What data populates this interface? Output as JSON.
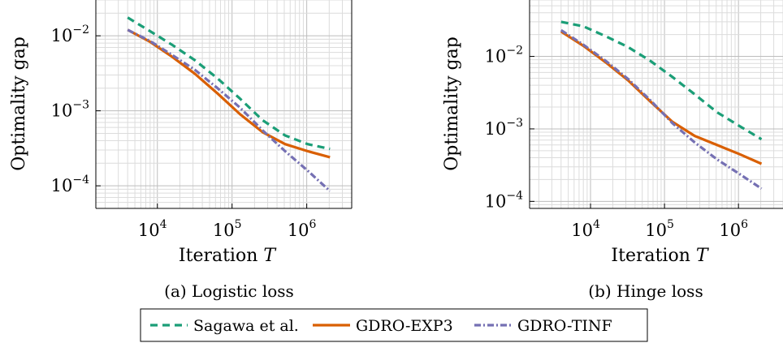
{
  "chart_data": [
    {
      "type": "line",
      "caption": "(a) Logistic loss",
      "xlabel": "Iteration",
      "xlabel_var": "T",
      "ylabel": "Optimality gap",
      "xscale": "log",
      "yscale": "log",
      "xlim": [
        1500,
        4000000
      ],
      "ylim": [
        5e-05,
        0.03
      ],
      "xticks": [
        10000,
        100000,
        1000000
      ],
      "xtick_labels": [
        {
          "base": "10",
          "exp": "4"
        },
        {
          "base": "10",
          "exp": "5"
        },
        {
          "base": "10",
          "exp": "6"
        }
      ],
      "yticks": [
        0.0001,
        0.001,
        0.01
      ],
      "ytick_labels": [
        {
          "base": "10",
          "exp": "−4"
        },
        {
          "base": "10",
          "exp": "−3"
        },
        {
          "base": "10",
          "exp": "−2"
        }
      ],
      "grid": true,
      "x": [
        4000,
        8000,
        16000,
        32000,
        64000,
        128000,
        256000,
        512000,
        1024000,
        2048000
      ],
      "series": [
        {
          "name": "Sagawa et al.",
          "values": [
            0.0175,
            0.0115,
            0.0075,
            0.0047,
            0.0027,
            0.00145,
            0.00075,
            0.00047,
            0.00036,
            0.00031
          ]
        },
        {
          "name": "GDRO-EXP3",
          "values": [
            0.012,
            0.0083,
            0.0052,
            0.0031,
            0.0017,
            0.0009,
            0.00052,
            0.00036,
            0.00029,
            0.00024
          ]
        },
        {
          "name": "GDRO-TINF",
          "values": [
            0.012,
            0.0085,
            0.0055,
            0.0035,
            0.002,
            0.0011,
            0.00055,
            0.00029,
            0.00016,
            8.5e-05
          ]
        }
      ]
    },
    {
      "type": "line",
      "caption": "(b) Hinge loss",
      "xlabel": "Iteration",
      "xlabel_var": "T",
      "ylabel": "Optimality gap",
      "xscale": "log",
      "yscale": "log",
      "xlim": [
        1500,
        4000000
      ],
      "ylim": [
        8e-05,
        0.06
      ],
      "xticks": [
        10000,
        100000,
        1000000
      ],
      "xtick_labels": [
        {
          "base": "10",
          "exp": "4"
        },
        {
          "base": "10",
          "exp": "5"
        },
        {
          "base": "10",
          "exp": "6"
        }
      ],
      "yticks": [
        0.0001,
        0.001,
        0.01
      ],
      "ytick_labels": [
        {
          "base": "10",
          "exp": "−4"
        },
        {
          "base": "10",
          "exp": "−3"
        },
        {
          "base": "10",
          "exp": "−2"
        }
      ],
      "grid": true,
      "x": [
        4000,
        8000,
        16000,
        32000,
        64000,
        128000,
        256000,
        512000,
        1024000,
        2048000
      ],
      "series": [
        {
          "name": "Sagawa et al.",
          "values": [
            0.03,
            0.026,
            0.019,
            0.0135,
            0.0087,
            0.0052,
            0.003,
            0.0017,
            0.0011,
            0.00072
          ]
        },
        {
          "name": "GDRO-EXP3",
          "values": [
            0.022,
            0.014,
            0.0083,
            0.0047,
            0.0024,
            0.00125,
            0.0008,
            0.0006,
            0.00045,
            0.00033
          ]
        },
        {
          "name": "GDRO-TINF",
          "values": [
            0.023,
            0.0145,
            0.0087,
            0.0049,
            0.0025,
            0.0012,
            0.00065,
            0.00038,
            0.00024,
            0.00015
          ]
        }
      ]
    }
  ],
  "legend": {
    "placement": "bottom-center",
    "entries": [
      {
        "name": "Sagawa et al.",
        "color": "#1b9e77",
        "style": "dashed"
      },
      {
        "name": "GDRO-EXP3",
        "color": "#d95f02",
        "style": "solid"
      },
      {
        "name": "GDRO-TINF",
        "color": "#7570b3",
        "style": "dash-dot"
      }
    ]
  }
}
